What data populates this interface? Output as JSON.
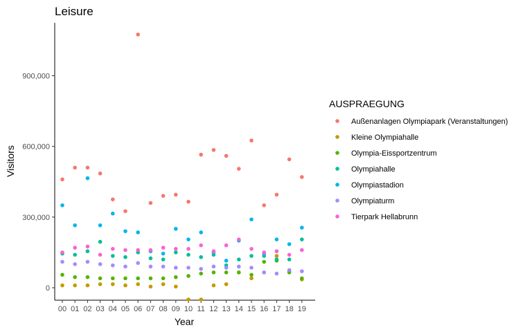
{
  "chart_data": {
    "type": "scatter",
    "title": "Leisure",
    "xlabel": "Year",
    "ylabel": "Visitors",
    "legend_title": "AUSPRAEGUNG",
    "legend_position": "right",
    "grid": false,
    "ylim": [
      -50000,
      1100000
    ],
    "y_ticks": [
      0,
      300000,
      600000,
      900000
    ],
    "y_tick_labels": [
      "0",
      "300,000",
      "600,000",
      "900,000"
    ],
    "categories": [
      "00",
      "01",
      "02",
      "03",
      "04",
      "05",
      "06",
      "07",
      "08",
      "09",
      "10",
      "11",
      "12",
      "13",
      "14",
      "15",
      "16",
      "17",
      "18",
      "19"
    ],
    "series": [
      {
        "name": "Außenanlagen Olympiapark (Veranstaltungen)",
        "color": "#F8766D",
        "values": [
          460000,
          510000,
          510000,
          485000,
          375000,
          325000,
          1075000,
          360000,
          390000,
          395000,
          365000,
          565000,
          585000,
          560000,
          505000,
          625000,
          350000,
          395000,
          545000,
          470000
        ]
      },
      {
        "name": "Kleine Olympiahalle",
        "color": "#C49A00",
        "values": [
          10000,
          10000,
          10000,
          15000,
          15000,
          10000,
          15000,
          5000,
          15000,
          5000,
          -50000,
          -50000,
          10000,
          15000,
          65000,
          40000,
          65000,
          135000,
          70000,
          35000
        ]
      },
      {
        "name": "Olympia-Eissportzentrum",
        "color": "#53B400",
        "values": [
          55000,
          45000,
          45000,
          40000,
          40000,
          40000,
          40000,
          40000,
          40000,
          45000,
          50000,
          60000,
          65000,
          65000,
          65000,
          55000,
          110000,
          115000,
          65000,
          40000
        ]
      },
      {
        "name": "Olympiahalle",
        "color": "#00C094",
        "values": [
          145000,
          140000,
          155000,
          195000,
          135000,
          130000,
          150000,
          125000,
          120000,
          150000,
          140000,
          130000,
          140000,
          95000,
          120000,
          135000,
          135000,
          120000,
          120000,
          205000
        ]
      },
      {
        "name": "Olympiastadion",
        "color": "#00B6EB",
        "values": [
          350000,
          265000,
          465000,
          265000,
          315000,
          240000,
          235000,
          155000,
          145000,
          250000,
          205000,
          235000,
          150000,
          115000,
          200000,
          290000,
          145000,
          205000,
          185000,
          255000
        ]
      },
      {
        "name": "Olympiaturm",
        "color": "#A58AFF",
        "values": [
          110000,
          100000,
          110000,
          100000,
          95000,
          90000,
          105000,
          90000,
          90000,
          85000,
          85000,
          80000,
          90000,
          85000,
          90000,
          85000,
          65000,
          60000,
          75000,
          70000
        ]
      },
      {
        "name": "Tierpark Hellabrunn",
        "color": "#FB61D7",
        "values": [
          150000,
          170000,
          175000,
          140000,
          165000,
          160000,
          160000,
          160000,
          170000,
          165000,
          165000,
          180000,
          155000,
          180000,
          205000,
          165000,
          150000,
          155000,
          140000,
          160000
        ]
      }
    ]
  }
}
